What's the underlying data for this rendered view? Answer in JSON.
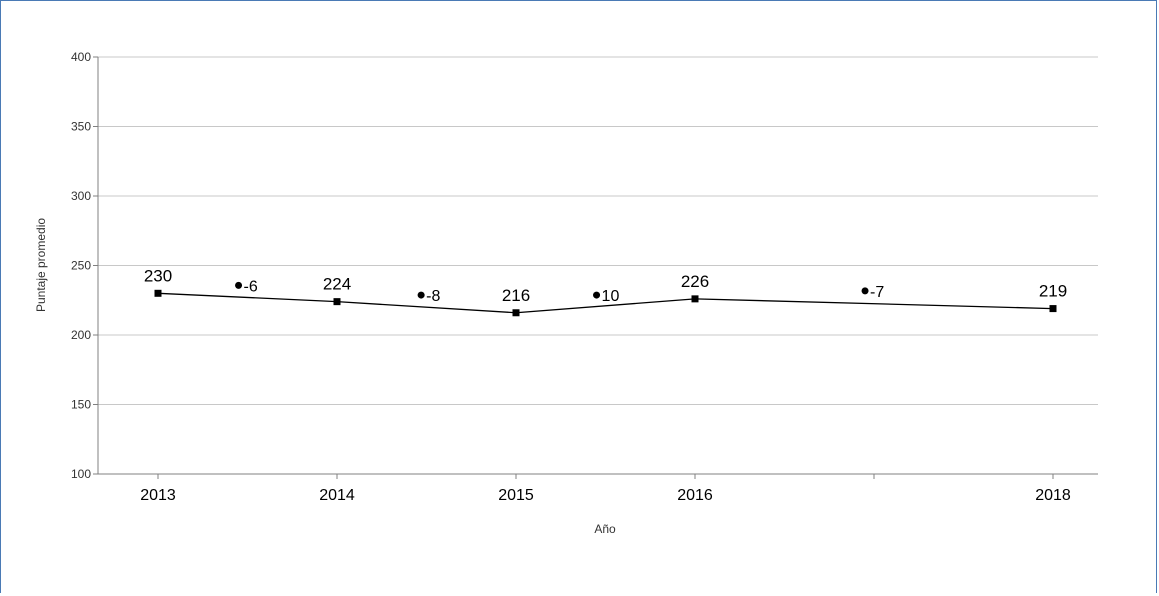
{
  "chart_data": {
    "type": "line",
    "xlabel": "Año",
    "ylabel": "Puntaje promedio",
    "ylim": [
      100,
      400
    ],
    "yticks": [
      100,
      150,
      200,
      250,
      300,
      350,
      400
    ],
    "x_ticks": [
      "2013",
      "2014",
      "2015",
      "2016",
      "",
      "2018"
    ],
    "grid": true,
    "series": [
      {
        "x": [
          2013,
          2014,
          2015,
          2016,
          2018
        ],
        "values": [
          230,
          224,
          216,
          226,
          219
        ],
        "labels": [
          "230",
          "224",
          "216",
          "226",
          "219"
        ]
      }
    ],
    "differences": [
      {
        "x": 2013.45,
        "y": 235,
        "label": "-6"
      },
      {
        "x": 2014.47,
        "y": 228,
        "label": "-8"
      },
      {
        "x": 2015.45,
        "y": 228,
        "label": "10"
      },
      {
        "x": 2016.95,
        "y": 231,
        "label": "-7"
      }
    ]
  }
}
